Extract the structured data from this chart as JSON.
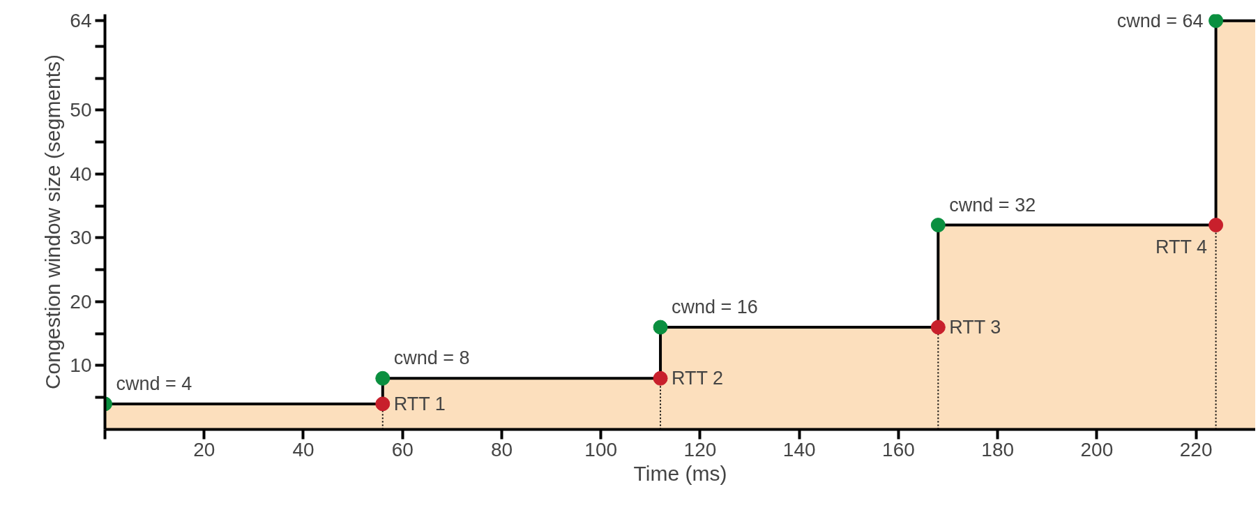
{
  "chart_data": {
    "type": "area",
    "xlabel": "Time (ms)",
    "ylabel": "Congestion window size (segments)",
    "xlim": [
      0,
      232
    ],
    "ylim": [
      0,
      65
    ],
    "xticks": [
      {
        "value": 0,
        "label": null
      },
      20,
      40,
      60,
      80,
      100,
      120,
      140,
      160,
      180,
      200,
      220
    ],
    "yticks": [
      {
        "value": 5,
        "label": null
      },
      10,
      {
        "value": 15,
        "label": null
      },
      20,
      {
        "value": 25,
        "label": null
      },
      30,
      {
        "value": 35,
        "label": null
      },
      40,
      {
        "value": 45,
        "label": null
      },
      50,
      {
        "value": 55,
        "label": null
      },
      {
        "value": 60,
        "label": null
      },
      64
    ],
    "series": [
      {
        "color": "#fcdfbd",
        "x": [
          0,
          56,
          56,
          112,
          112,
          168,
          168,
          224,
          224,
          232
        ],
        "values": [
          4,
          4,
          8,
          8,
          16,
          16,
          32,
          32,
          64,
          64
        ]
      },
      {
        "type": "scatter",
        "color": "#0a8f3f",
        "marker": "circle",
        "x": [
          0,
          56,
          112,
          168,
          224
        ],
        "values": [
          4,
          8,
          16,
          32,
          64
        ]
      },
      {
        "type": "lollipop",
        "color": "#c8202c",
        "marker": "circle",
        "line_style": "dotted",
        "x": [
          56,
          112,
          168,
          224
        ],
        "values": [
          4,
          8,
          16,
          32
        ]
      }
    ],
    "annotations": [
      {
        "text": "cwnd = 4",
        "x": 0,
        "y": 4
      },
      {
        "text": "cwnd = 8",
        "x": 56,
        "y": 8
      },
      {
        "text": "cwnd = 16",
        "x": 112,
        "y": 16
      },
      {
        "text": "cwnd = 32",
        "x": 168,
        "y": 32
      },
      {
        "text": "cwnd = 64",
        "x": 224,
        "y": 64
      },
      {
        "text": "RTT 1",
        "x": 56,
        "y": 4
      },
      {
        "text": "RTT 2",
        "x": 112,
        "y": 8
      },
      {
        "text": "RTT 3",
        "x": 168,
        "y": 16
      },
      {
        "text": "RTT 4",
        "x": 224,
        "y": 32
      }
    ]
  }
}
